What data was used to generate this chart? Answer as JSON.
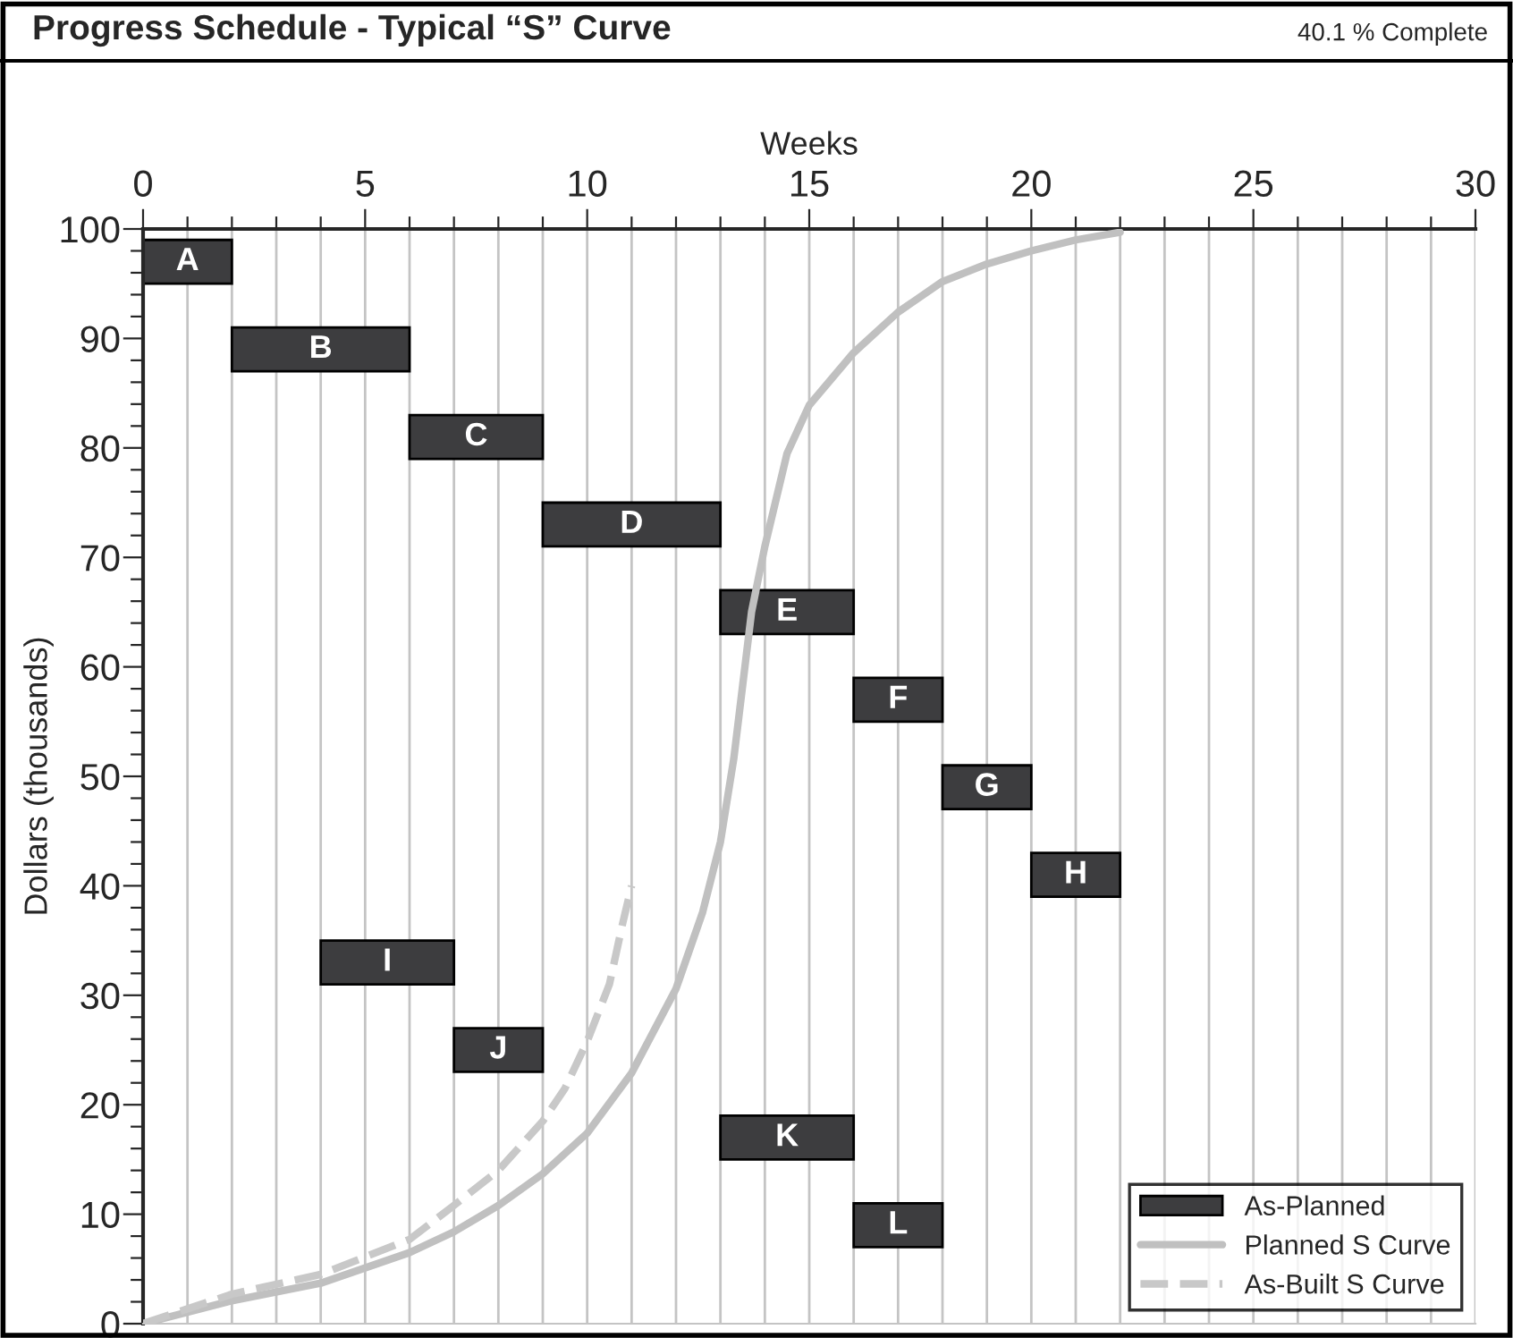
{
  "chart_data": [
    {
      "type": "bar",
      "title": "Progress Schedule - Typical “S” Curve",
      "annotations": [
        "40.1 % Complete"
      ],
      "orientation": "horizontal",
      "categories": [
        "A",
        "B",
        "C",
        "D",
        "E",
        "F",
        "G",
        "H",
        "I",
        "J",
        "K",
        "L"
      ],
      "series": [
        {
          "name": "As-Planned",
          "color": "#3d3d3f",
          "base": [
            0,
            2,
            6,
            9,
            13,
            16,
            18,
            20,
            4,
            7,
            13,
            16
          ],
          "values": [
            2,
            4,
            3,
            4,
            3,
            2,
            2,
            2,
            3,
            2,
            3,
            2
          ]
        }
      ],
      "xlim": [
        0,
        30
      ],
      "xticks": [
        0,
        1,
        2,
        3,
        4,
        5,
        6,
        7,
        8,
        9,
        10,
        11,
        12,
        13,
        14,
        15,
        16,
        17,
        18,
        19,
        20,
        21,
        22,
        23,
        24,
        25,
        26,
        27,
        28,
        29,
        30
      ],
      "tick_labels": false,
      "grid": "x",
      "legend": "bottom right"
    },
    {
      "type": "line",
      "xlabel": "Weeks",
      "ylabel": "Dollars (thousands)",
      "series": [
        {
          "name": "Planned S Curve",
          "color": "#c0c0c0",
          "line_style": "solid",
          "x": [
            0,
            2,
            4,
            6,
            7,
            8,
            9,
            10,
            11,
            12,
            12.6,
            13,
            13.3,
            13.7,
            14,
            14.5,
            15,
            16,
            17,
            18,
            19,
            20,
            21,
            22
          ],
          "values": [
            0,
            2.1,
            3.7,
            6.5,
            8.4,
            10.8,
            13.7,
            17.4,
            22.9,
            30.6,
            37.6,
            44,
            51.6,
            65,
            71,
            79.5,
            83.9,
            88.7,
            92.4,
            95.2,
            96.8,
            98,
            99,
            99.7
          ]
        },
        {
          "name": "As-Built S Curve",
          "color": "#c8c8c8",
          "line_style": "dashed",
          "x": [
            0,
            2,
            4,
            6,
            7,
            8,
            9,
            9.5,
            10,
            10.5,
            10.8,
            11
          ],
          "values": [
            0,
            2.7,
            4.5,
            7.7,
            10.8,
            14,
            18.5,
            21.5,
            25.8,
            31,
            36.6,
            40
          ]
        }
      ],
      "xlim": [
        0,
        30
      ],
      "ylim": [
        0,
        100
      ],
      "xticks": [
        0,
        {
          "value": 1,
          "label": null
        },
        {
          "value": 2,
          "label": null
        },
        {
          "value": 3,
          "label": null
        },
        {
          "value": 4,
          "label": null
        },
        5,
        {
          "value": 6,
          "label": null
        },
        {
          "value": 7,
          "label": null
        },
        {
          "value": 8,
          "label": null
        },
        {
          "value": 9,
          "label": null
        },
        10,
        {
          "value": 11,
          "label": null
        },
        {
          "value": 12,
          "label": null
        },
        {
          "value": 13,
          "label": null
        },
        {
          "value": 14,
          "label": null
        },
        15,
        {
          "value": 16,
          "label": null
        },
        {
          "value": 17,
          "label": null
        },
        {
          "value": 18,
          "label": null
        },
        {
          "value": 19,
          "label": null
        },
        20,
        {
          "value": 21,
          "label": null
        },
        {
          "value": 22,
          "label": null
        },
        {
          "value": 23,
          "label": null
        },
        {
          "value": 24,
          "label": null
        },
        25,
        {
          "value": 26,
          "label": null
        },
        {
          "value": 27,
          "label": null
        },
        {
          "value": 28,
          "label": null
        },
        {
          "value": 29,
          "label": null
        },
        30
      ],
      "yticks": [
        0,
        {
          "value": 2,
          "label": null
        },
        {
          "value": 4,
          "label": null
        },
        {
          "value": 6,
          "label": null
        },
        {
          "value": 8,
          "label": null
        },
        10,
        {
          "value": 12,
          "label": null
        },
        {
          "value": 14,
          "label": null
        },
        {
          "value": 16,
          "label": null
        },
        {
          "value": 18,
          "label": null
        },
        20,
        {
          "value": 22,
          "label": null
        },
        {
          "value": 24,
          "label": null
        },
        {
          "value": 26,
          "label": null
        },
        {
          "value": 28,
          "label": null
        },
        30,
        {
          "value": 32,
          "label": null
        },
        {
          "value": 34,
          "label": null
        },
        {
          "value": 36,
          "label": null
        },
        {
          "value": 38,
          "label": null
        },
        40,
        {
          "value": 42,
          "label": null
        },
        {
          "value": 44,
          "label": null
        },
        {
          "value": 46,
          "label": null
        },
        {
          "value": 48,
          "label": null
        },
        50,
        {
          "value": 52,
          "label": null
        },
        {
          "value": 54,
          "label": null
        },
        {
          "value": 56,
          "label": null
        },
        {
          "value": 58,
          "label": null
        },
        60,
        {
          "value": 62,
          "label": null
        },
        {
          "value": 64,
          "label": null
        },
        {
          "value": 66,
          "label": null
        },
        {
          "value": 68,
          "label": null
        },
        70,
        {
          "value": 72,
          "label": null
        },
        {
          "value": 74,
          "label": null
        },
        {
          "value": 76,
          "label": null
        },
        {
          "value": 78,
          "label": null
        },
        80,
        {
          "value": 82,
          "label": null
        },
        {
          "value": 84,
          "label": null
        },
        {
          "value": 86,
          "label": null
        },
        {
          "value": 88,
          "label": null
        },
        90,
        {
          "value": 92,
          "label": null
        },
        {
          "value": 94,
          "label": null
        },
        {
          "value": 96,
          "label": null
        },
        {
          "value": 98,
          "label": null
        },
        100
      ],
      "legend": "bottom right"
    }
  ]
}
